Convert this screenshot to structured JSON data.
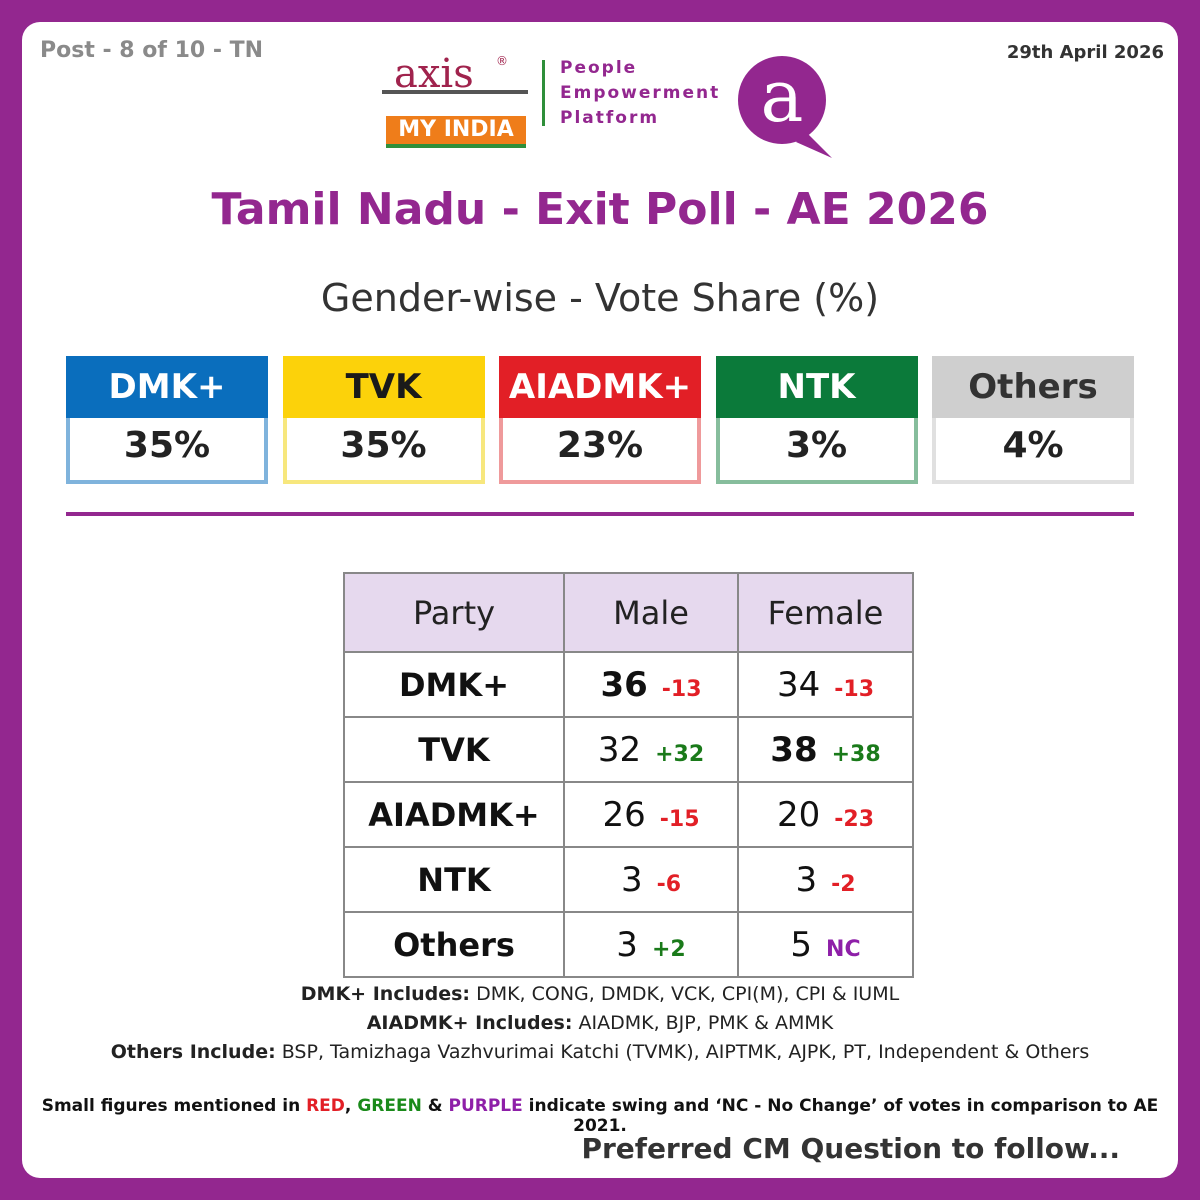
{
  "header": {
    "post": "Post - 8 of 10 - TN",
    "date": "29th April 2026",
    "logo_axis": "axis",
    "logo_reg": "®",
    "logo_myindia": "MY INDIA",
    "tagline": [
      "People",
      "Empowerment",
      "Platform"
    ],
    "icon_letter": "a"
  },
  "title": "Tamil Nadu - Exit Poll - AE 2026",
  "subtitle": "Gender-wise - Vote Share (%)",
  "summary": [
    {
      "party": "DMK+",
      "share": "35%",
      "color": "#0a6ebd",
      "border": "#7fb3dc",
      "text_color": "#ffffff"
    },
    {
      "party": "TVK",
      "share": "35%",
      "color": "#fcd20a",
      "border": "#f7e77d",
      "text_color": "#1a1a1a"
    },
    {
      "party": "AIADMK+",
      "share": "23%",
      "color": "#e21f26",
      "border": "#ef9a9b",
      "text_color": "#ffffff"
    },
    {
      "party": "NTK",
      "share": "3%",
      "color": "#0b7a3a",
      "border": "#86bd9c",
      "text_color": "#ffffff"
    },
    {
      "party": "Others",
      "share": "4%",
      "color": "#cfcfcf",
      "border": "#e0e0e0",
      "text_color": "#333333"
    }
  ],
  "table": {
    "header": [
      "Party",
      "Male",
      "Female"
    ],
    "rows": [
      {
        "party": "DMK+",
        "male": {
          "value": "36",
          "swing": "-13",
          "bold": true
        },
        "female": {
          "value": "34",
          "swing": "-13"
        }
      },
      {
        "party": "TVK",
        "male": {
          "value": "32",
          "swing": "+32"
        },
        "female": {
          "value": "38",
          "swing": "+38",
          "bold": true
        }
      },
      {
        "party": "AIADMK+",
        "male": {
          "value": "26",
          "swing": "-15"
        },
        "female": {
          "value": "20",
          "swing": "-23"
        }
      },
      {
        "party": "NTK",
        "male": {
          "value": "3",
          "swing": "-6"
        },
        "female": {
          "value": "3",
          "swing": "-2"
        }
      },
      {
        "party": "Others",
        "male": {
          "value": "3",
          "swing": "+2"
        },
        "female": {
          "value": "5",
          "swing": "NC"
        }
      }
    ]
  },
  "notes": [
    {
      "label": "DMK+ Includes:",
      "text": "DMK, CONG, DMDK, VCK, CPI(M), CPI & IUML"
    },
    {
      "label": "AIADMK+ Includes:",
      "text": "AIADMK, BJP, PMK & AMMK"
    },
    {
      "label": "Others Include:",
      "text": "BSP, Tamizhaga Vazhvurimai Katchi (TVMK), AIPTMK, AJPK, PT, Independent & Others"
    }
  ],
  "footnote": [
    "Small figures mentioned in ",
    "RED",
    ", ",
    "GREEN",
    " & ",
    "PURPLE",
    " indicate swing and ‘NC - No Change’ of votes in comparison to AE 2021."
  ],
  "footer": "Preferred CM Question to follow..."
}
